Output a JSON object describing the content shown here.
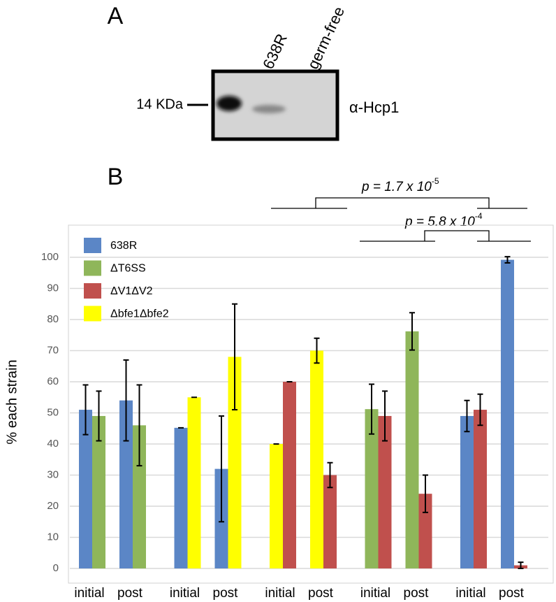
{
  "panel_a": {
    "label": "A",
    "lanes": [
      "638R",
      "germ-free"
    ],
    "marker": "14 KDa",
    "antibody": "α-Hcp1"
  },
  "chart_data": {
    "type": "bar",
    "panel_label": "B",
    "ylabel": "% each strain",
    "categories": [
      "initial",
      "post",
      "initial",
      "post",
      "initial",
      "post",
      "initial",
      "post",
      "initial",
      "post"
    ],
    "series": [
      {
        "name": "638R",
        "color": "#5b86c6",
        "values": [
          51,
          54,
          45.2,
          32,
          null,
          null,
          null,
          null,
          49,
          99.2
        ],
        "errors": [
          8,
          13,
          0,
          17,
          null,
          null,
          null,
          null,
          5,
          1
        ]
      },
      {
        "name": "ΔT6SS",
        "color": "#8fb65a",
        "values": [
          49,
          46,
          null,
          null,
          null,
          null,
          51.2,
          76.2,
          null,
          null
        ],
        "errors": [
          8,
          13,
          null,
          null,
          null,
          null,
          8,
          6,
          null,
          null
        ]
      },
      {
        "name": "ΔV1ΔV2",
        "color": "#c0504d",
        "values": [
          null,
          null,
          null,
          null,
          60,
          30,
          49,
          24,
          51,
          1
        ],
        "errors": [
          null,
          null,
          null,
          null,
          0,
          4,
          8,
          6,
          5,
          1
        ]
      },
      {
        "name": "Δbfe1Δbfe2",
        "color": "#ffff00",
        "values": [
          null,
          null,
          55,
          68,
          40,
          70,
          null,
          null,
          null,
          null
        ],
        "errors": [
          null,
          null,
          0,
          17,
          0,
          4,
          null,
          null,
          null,
          null
        ]
      }
    ],
    "ylim": [
      0,
      100
    ],
    "yticks": [
      0,
      10,
      20,
      30,
      40,
      50,
      60,
      70,
      80,
      90,
      100
    ],
    "grid": true,
    "annotations": [
      {
        "label": "p = 1.7 x 10",
        "exponent": "-5"
      },
      {
        "label": "p = 5.8 x 10",
        "exponent": "-4"
      }
    ]
  }
}
